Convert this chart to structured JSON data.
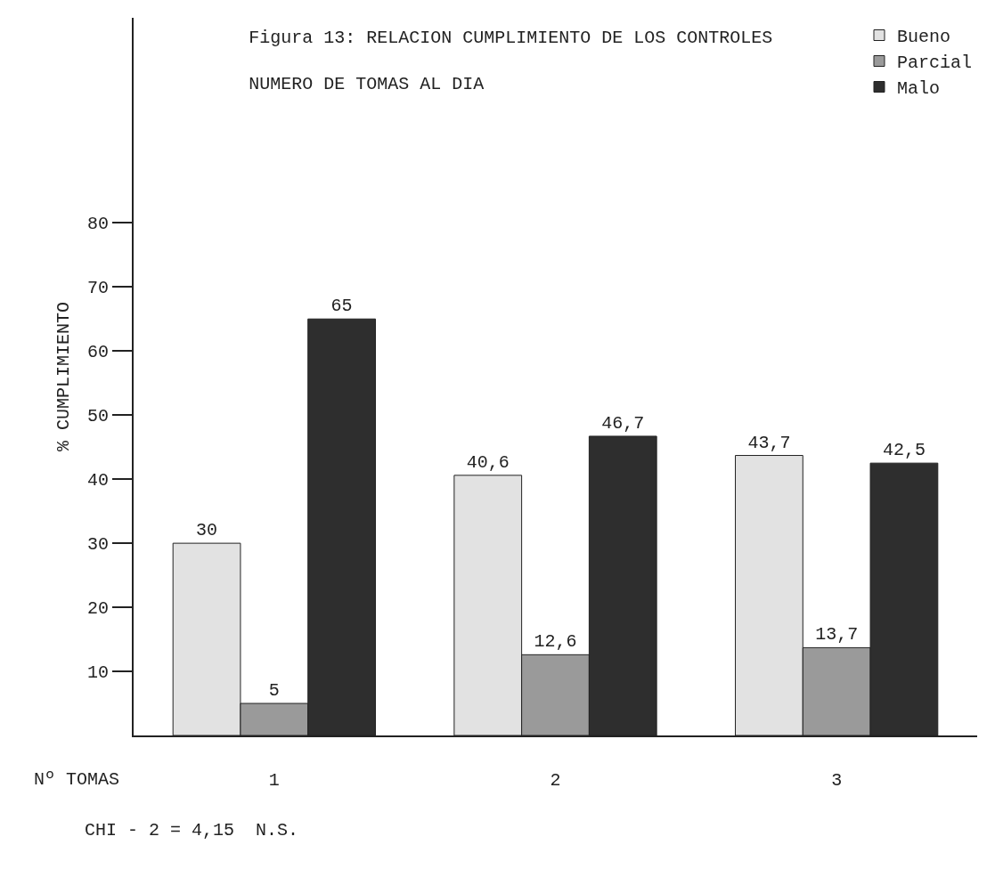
{
  "chart_data": {
    "type": "bar",
    "title": "Figura 13: RELACION CUMPLIMIENTO DE LOS CONTROLES",
    "subtitle": "NUMERO DE TOMAS AL DIA",
    "xlabel": "Nº TOMAS",
    "ylabel": "% CUMPLIMIENTO",
    "categories": [
      "1",
      "2",
      "3"
    ],
    "series": [
      {
        "name": "Bueno",
        "color": "#e2e2e2",
        "values": [
          30,
          40.6,
          43.7
        ],
        "value_labels": [
          "30",
          "40,6",
          "43,7"
        ]
      },
      {
        "name": "Parcial",
        "color": "#9a9a9a",
        "values": [
          5,
          12.6,
          13.7
        ],
        "value_labels": [
          "5",
          "12,6",
          "13,7"
        ]
      },
      {
        "name": "Malo",
        "color": "#2e2e2e",
        "values": [
          65,
          46.7,
          42.5
        ],
        "value_labels": [
          "65",
          "46,7",
          "42,5"
        ]
      }
    ],
    "ylim": [
      0,
      112
    ],
    "yticks": [
      10,
      20,
      30,
      40,
      50,
      60,
      70,
      80
    ],
    "grid": false,
    "legend": "top right",
    "annotations": [
      "CHI - 2 = 4,15  N.S."
    ]
  }
}
